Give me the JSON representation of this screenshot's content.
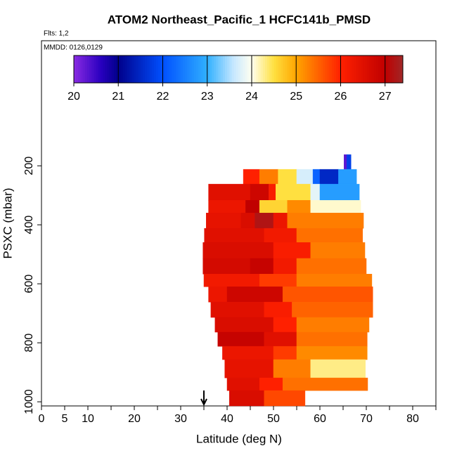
{
  "chart_data": {
    "type": "curtain",
    "title": "ATOM2 Northeast_Pacific_1 HCFC141b_PMSD",
    "annotations": [
      "Flts: 1,2",
      "MMDD: 0126,0129"
    ],
    "x_label": "Latitude (deg N)",
    "y_label": "PSXC (mbar)",
    "xlim": [
      0,
      85
    ],
    "xticks": [
      0,
      5,
      10,
      20,
      30,
      40,
      50,
      60,
      70,
      80
    ],
    "xminorticks": [
      15,
      25,
      35,
      45,
      55,
      65,
      75,
      85
    ],
    "ylim": [
      1014,
      -224
    ],
    "yticks": [
      200,
      400,
      600,
      800,
      1000
    ],
    "clim": [
      20,
      27.4
    ],
    "cticks": [
      20,
      21,
      22,
      23,
      24,
      25,
      26,
      27
    ],
    "colormap": [
      [
        20,
        "#8a2be2"
      ],
      [
        20.6,
        "#2a00c0"
      ],
      [
        21,
        "#00008b"
      ],
      [
        22,
        "#0050ff"
      ],
      [
        23,
        "#30b0ff"
      ],
      [
        23.6,
        "#c8e8ff"
      ],
      [
        24,
        "#fffff0"
      ],
      [
        24.5,
        "#ffe040"
      ],
      [
        25,
        "#ffa500"
      ],
      [
        26,
        "#ff2000"
      ],
      [
        27,
        "#c00000"
      ],
      [
        27.4,
        "#a02828"
      ]
    ],
    "arrow_lat": 35,
    "rows": [
      {
        "p": [
          162,
          212
        ],
        "lat": [
          65.2,
          65.8,
          66.7
        ],
        "values": [
          20.3,
          21.8
        ]
      },
      {
        "p": [
          212,
          262
        ],
        "lat": [
          43.5,
          47,
          51,
          55,
          58.5,
          60,
          64,
          67.9
        ],
        "values": [
          26,
          25.3,
          24.5,
          23.7,
          22.2,
          21.5,
          22.8
        ]
      },
      {
        "p": [
          262,
          317
        ],
        "lat": [
          36,
          45,
          49,
          50.5,
          58,
          60,
          68.5
        ],
        "values": [
          26.5,
          26.8,
          26.1,
          24.5,
          23.8,
          22.8
        ]
      },
      {
        "p": [
          317,
          360
        ],
        "lat": [
          36,
          44,
          47,
          53,
          58,
          68.8
        ],
        "values": [
          26.3,
          27,
          24.6,
          25.2,
          24.1
        ]
      },
      {
        "p": [
          360,
          412
        ],
        "lat": [
          35.5,
          43,
          46,
          50,
          53,
          69.4
        ],
        "values": [
          26.4,
          26.6,
          27.2,
          26.3,
          25.3
        ]
      },
      {
        "p": [
          412,
          460
        ],
        "lat": [
          35.1,
          48,
          55,
          69.2
        ],
        "values": [
          26.5,
          26.2,
          25.4
        ]
      },
      {
        "p": [
          460,
          514
        ],
        "lat": [
          34.8,
          50,
          58,
          69.7
        ],
        "values": [
          26.6,
          26.1,
          25.3
        ]
      },
      {
        "p": [
          514,
          567
        ],
        "lat": [
          34.8,
          45,
          50,
          55,
          70
        ],
        "values": [
          26.7,
          26.9,
          26.2,
          25.4
        ]
      },
      {
        "p": [
          567,
          610
        ],
        "lat": [
          35,
          47,
          55,
          71.2
        ],
        "values": [
          26.2,
          25.8,
          25.3
        ]
      },
      {
        "p": [
          610,
          662
        ],
        "lat": [
          36,
          40,
          52,
          71.4
        ],
        "values": [
          26.3,
          26.8,
          25.6
        ]
      },
      {
        "p": [
          662,
          714
        ],
        "lat": [
          36.5,
          48,
          54,
          71.4
        ],
        "values": [
          26.5,
          26.1,
          25.5
        ]
      },
      {
        "p": [
          714,
          764
        ],
        "lat": [
          37.4,
          50,
          55,
          70.6
        ],
        "values": [
          26.6,
          26,
          25.3
        ]
      },
      {
        "p": [
          764,
          812
        ],
        "lat": [
          38,
          48,
          55,
          70.2
        ],
        "values": [
          26.9,
          26.5,
          25.4
        ]
      },
      {
        "p": [
          812,
          857
        ],
        "lat": [
          39,
          50,
          55,
          70.2
        ],
        "values": [
          26.3,
          25.8,
          25.2
        ]
      },
      {
        "p": [
          857,
          919
        ],
        "lat": [
          39.5,
          50,
          58,
          69.8
        ],
        "values": [
          26.4,
          25.3,
          24.3
        ]
      },
      {
        "p": [
          919,
          962
        ],
        "lat": [
          40,
          47,
          52,
          70.3
        ],
        "values": [
          26.5,
          26,
          25.4
        ]
      },
      {
        "p": [
          962,
          1014
        ],
        "lat": [
          40.5,
          48,
          56.8
        ],
        "values": [
          26.6,
          25.7
        ]
      }
    ]
  }
}
